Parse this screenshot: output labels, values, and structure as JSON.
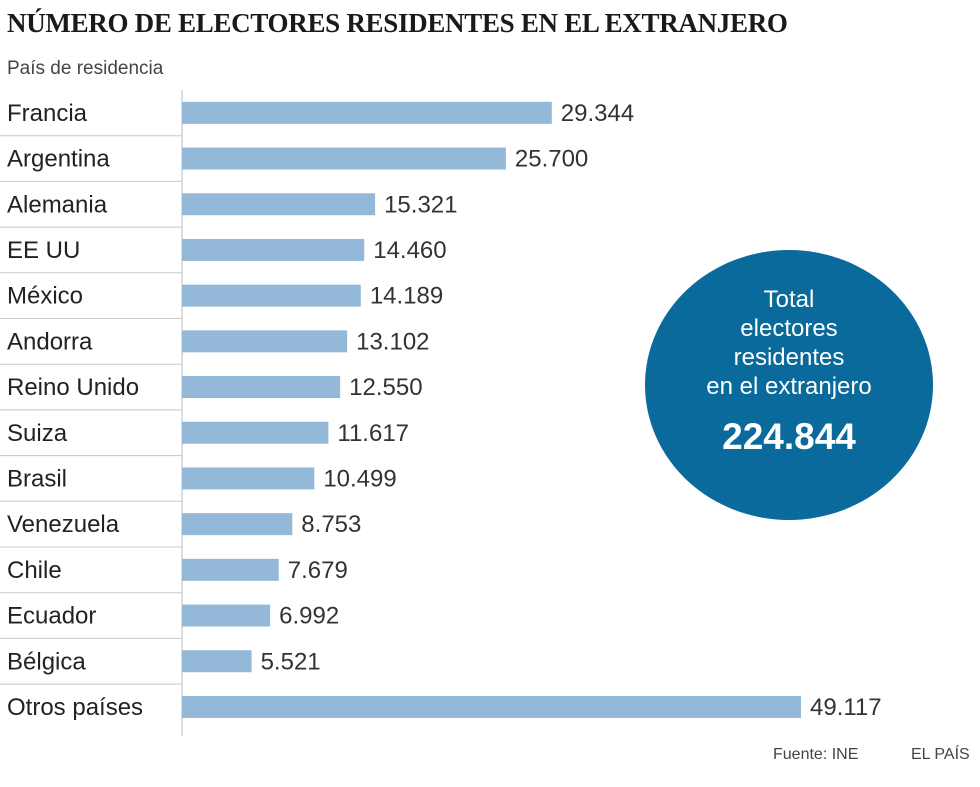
{
  "chart_data": {
    "type": "bar",
    "orientation": "horizontal",
    "title": "NÚMERO DE ELECTORES RESIDENTES EN EL EXTRANJERO",
    "ylabel": "País de residencia",
    "categories": [
      "Francia",
      "Argentina",
      "Alemania",
      "EE UU",
      "México",
      "Andorra",
      "Reino Unido",
      "Suiza",
      "Brasil",
      "Venezuela",
      "Chile",
      "Ecuador",
      "Bélgica",
      "Otros países"
    ],
    "values": [
      29344,
      25700,
      15321,
      14460,
      14189,
      13102,
      12550,
      11617,
      10499,
      8753,
      7679,
      6992,
      5521,
      49117
    ],
    "value_labels": [
      "29.344",
      "25.700",
      "15.321",
      "14.460",
      "14.189",
      "13.102",
      "12.550",
      "11.617",
      "10.499",
      "8.753",
      "7.679",
      "6.992",
      "5.521",
      "49.117"
    ],
    "xlim": [
      0,
      50000
    ],
    "grid": false,
    "bar_color": "#94b9d8"
  },
  "total": {
    "label": "Total electores residentes en el extranjero",
    "label_lines": [
      "Total",
      "electores",
      "residentes",
      "en el extranjero"
    ],
    "value": "224.844",
    "color": "#0a6a9b"
  },
  "footer": {
    "source": "Fuente: INE",
    "brand": "EL PAÍS"
  }
}
